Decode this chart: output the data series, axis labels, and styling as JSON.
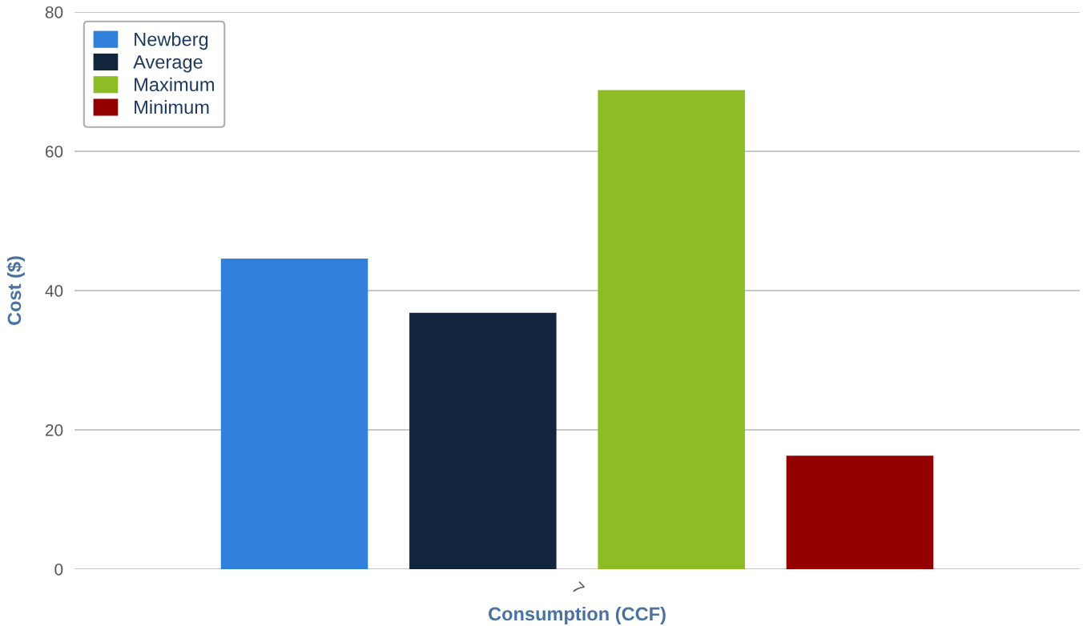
{
  "chart_data": {
    "type": "bar",
    "xlabel": "Consumption (CCF)",
    "ylabel": "Cost ($)",
    "categories": [
      "7"
    ],
    "series": [
      {
        "name": "Newberg",
        "color": "#3080dc",
        "values": [
          44.6
        ]
      },
      {
        "name": "Average",
        "color": "#11253c",
        "values": [
          36.8
        ]
      },
      {
        "name": "Maximum",
        "color": "#8dbc24",
        "values": [
          68.8
        ]
      },
      {
        "name": "Minimum",
        "color": "#940000",
        "values": [
          16.3
        ]
      }
    ],
    "ylim": [
      0,
      80
    ],
    "yticks": [
      0,
      20,
      40,
      60,
      80
    ],
    "grid": "y",
    "legend": "top left"
  }
}
